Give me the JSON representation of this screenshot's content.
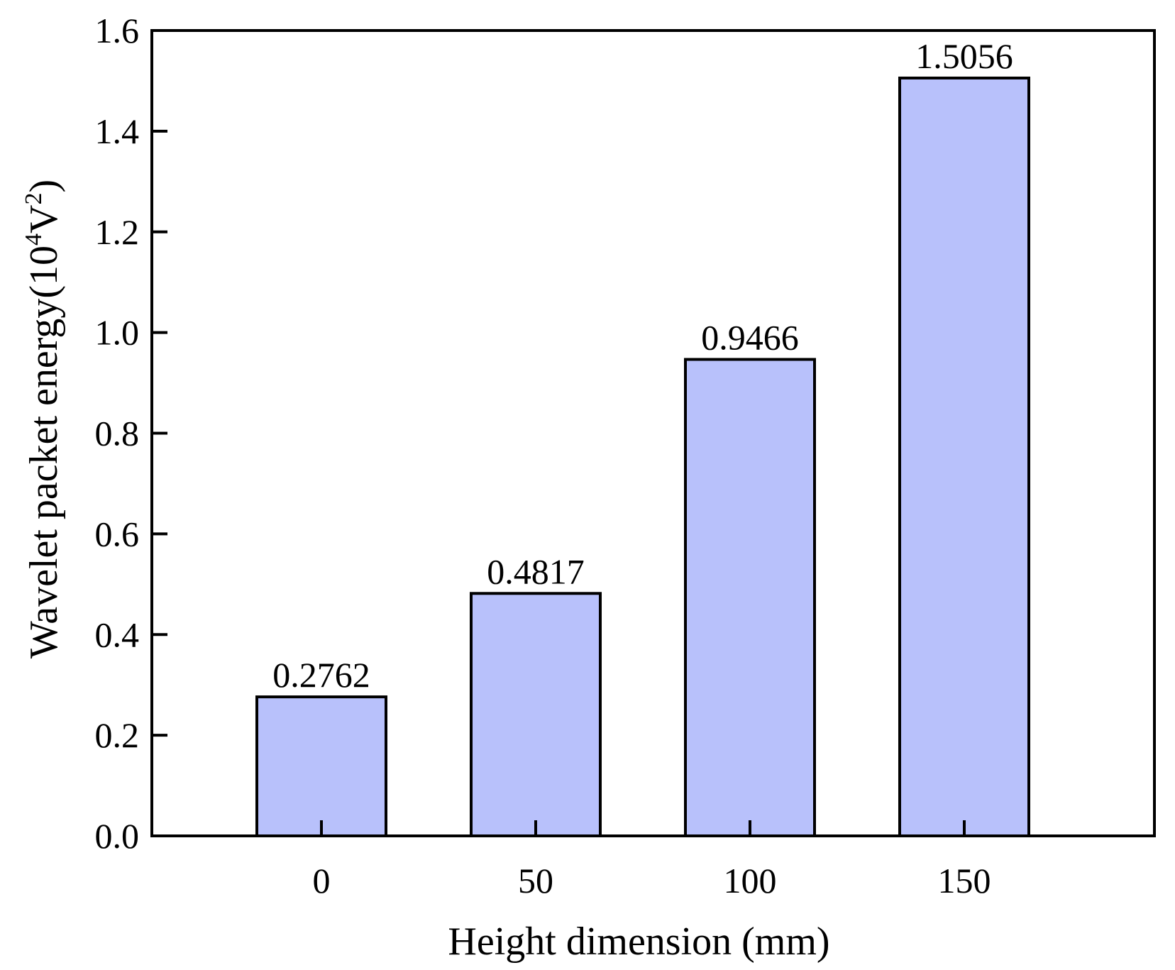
{
  "chart_data": {
    "type": "bar",
    "categories": [
      "0",
      "50",
      "100",
      "150"
    ],
    "values": [
      0.2762,
      0.4817,
      0.9466,
      1.5056
    ],
    "data_labels": [
      "0.2762",
      "0.4817",
      "0.9466",
      "1.5056"
    ],
    "title": "",
    "xlabel": "Height dimension (mm)",
    "ylabel": {
      "prefix": "Wavelet packet energy(10",
      "exp1": "4",
      "mid": "V",
      "exp2": "2",
      "suffix": ")"
    },
    "ylim": [
      0.0,
      1.6
    ],
    "yticks": [
      "0.0",
      "0.2",
      "0.4",
      "0.6",
      "0.8",
      "1.0",
      "1.2",
      "1.4",
      "1.6"
    ],
    "grid": false,
    "legend": "none",
    "colors": {
      "bar_fill": "#b8c1fb",
      "bar_stroke": "#000000",
      "axis": "#000000",
      "background": "#ffffff"
    }
  }
}
